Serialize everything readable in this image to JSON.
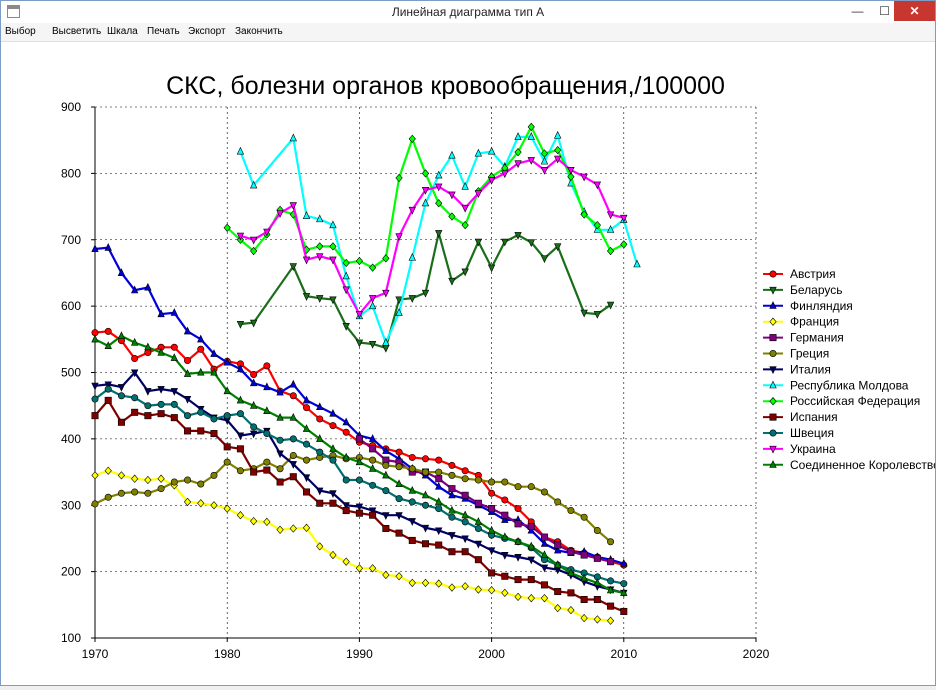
{
  "window": {
    "title": "Линейная диаграмма тип A",
    "close_glyph": "✕",
    "min_glyph": "—",
    "max_glyph": "☐"
  },
  "menu": [
    "Выбор",
    "Высветить",
    "Шкала",
    "Печать",
    "Экспорт",
    "Закончить"
  ],
  "colors": {
    "grid": "#000000",
    "background": "#ffffff"
  },
  "chart_data": {
    "type": "line",
    "title": "СКС, болезни органов кровообращения,/100000",
    "xlabel": "",
    "ylabel": "",
    "xlim": [
      1970,
      2020
    ],
    "ylim": [
      100,
      900
    ],
    "xticks": [
      1970,
      1980,
      1990,
      2000,
      2010,
      2020
    ],
    "yticks": [
      100,
      200,
      300,
      400,
      500,
      600,
      700,
      800,
      900
    ],
    "grid": true,
    "legend_position": "right",
    "series": [
      {
        "name": "Австрия",
        "color": "#ff0000",
        "marker": "circle",
        "x": [
          1970,
          1971,
          1972,
          1973,
          1974,
          1975,
          1976,
          1977,
          1978,
          1979,
          1980,
          1981,
          1982,
          1983,
          1984,
          1985,
          1986,
          1987,
          1988,
          1989,
          1990,
          1991,
          1992,
          1993,
          1994,
          1995,
          1996,
          1997,
          1998,
          1999,
          2000,
          2001,
          2002,
          2003,
          2004,
          2005,
          2006,
          2007,
          2008,
          2009,
          2010
        ],
        "y": [
          560,
          562,
          548,
          521,
          530,
          538,
          538,
          518,
          535,
          505,
          517,
          513,
          497,
          510,
          472,
          465,
          447,
          430,
          420,
          410,
          395,
          390,
          385,
          380,
          372,
          370,
          368,
          360,
          352,
          345,
          318,
          308,
          295,
          275,
          252,
          245,
          232,
          228,
          222,
          215,
          210
        ]
      },
      {
        "name": "Беларусь",
        "color": "#1a6e1a",
        "marker": "triangle-down",
        "x": [
          1981,
          1982,
          1985,
          1986,
          1987,
          1988,
          1989,
          1990,
          1991,
          1992,
          1993,
          1994,
          1995,
          1996,
          1997,
          1998,
          1999,
          2000,
          2001,
          2002,
          2003,
          2004,
          2005,
          2007,
          2008,
          2009
        ],
        "y": [
          573,
          575,
          660,
          615,
          612,
          610,
          570,
          545,
          543,
          537,
          610,
          612,
          620,
          710,
          638,
          652,
          697,
          658,
          697,
          707,
          696,
          672,
          690,
          590,
          588,
          602
        ]
      },
      {
        "name": "Финляндия",
        "color": "#0000dd",
        "marker": "triangle",
        "x": [
          1970,
          1971,
          1972,
          1973,
          1974,
          1975,
          1976,
          1977,
          1978,
          1979,
          1980,
          1981,
          1982,
          1983,
          1984,
          1985,
          1986,
          1987,
          1988,
          1989,
          1990,
          1991,
          1992,
          1993,
          1994,
          1995,
          1996,
          1997,
          1998,
          1999,
          2000,
          2001,
          2002,
          2003,
          2004,
          2005,
          2006,
          2007,
          2008,
          2009,
          2010
        ],
        "y": [
          686,
          688,
          650,
          624,
          628,
          588,
          590,
          562,
          550,
          528,
          515,
          505,
          484,
          478,
          470,
          482,
          458,
          448,
          438,
          425,
          405,
          400,
          382,
          370,
          355,
          345,
          328,
          315,
          310,
          300,
          290,
          278,
          278,
          262,
          242,
          232,
          228,
          230,
          222,
          218,
          212
        ]
      },
      {
        "name": "Франция",
        "color": "#ffff00",
        "marker": "diamond",
        "x": [
          1970,
          1971,
          1972,
          1973,
          1974,
          1975,
          1976,
          1977,
          1978,
          1979,
          1980,
          1981,
          1982,
          1983,
          1984,
          1985,
          1986,
          1987,
          1988,
          1989,
          1990,
          1991,
          1992,
          1993,
          1994,
          1995,
          1996,
          1997,
          1998,
          1999,
          2000,
          2001,
          2002,
          2003,
          2004,
          2005,
          2006,
          2007,
          2008,
          2009
        ],
        "y": [
          345,
          352,
          345,
          340,
          338,
          340,
          330,
          305,
          303,
          300,
          295,
          285,
          276,
          275,
          263,
          265,
          266,
          238,
          225,
          215,
          205,
          205,
          195,
          193,
          183,
          183,
          182,
          176,
          178,
          173,
          172,
          168,
          162,
          160,
          160,
          145,
          142,
          130,
          128,
          126
        ]
      },
      {
        "name": "Германия",
        "color": "#800080",
        "marker": "square",
        "x": [
          1990,
          1991,
          1992,
          1993,
          1994,
          1995,
          1996,
          1997,
          1998,
          1999,
          2000,
          2001,
          2002,
          2003,
          2004,
          2005,
          2006,
          2007,
          2008,
          2009
        ],
        "y": [
          400,
          385,
          368,
          365,
          350,
          350,
          340,
          325,
          315,
          303,
          295,
          285,
          272,
          268,
          252,
          240,
          230,
          225,
          220,
          215
        ]
      },
      {
        "name": "Греция",
        "color": "#808000",
        "marker": "circle",
        "x": [
          1970,
          1971,
          1972,
          1973,
          1974,
          1975,
          1976,
          1977,
          1978,
          1979,
          1980,
          1981,
          1982,
          1983,
          1984,
          1985,
          1986,
          1987,
          1988,
          1989,
          1990,
          1991,
          1992,
          1993,
          1994,
          1995,
          1996,
          1997,
          1998,
          1999,
          2000,
          2001,
          2002,
          2003,
          2004,
          2005,
          2006,
          2007,
          2008,
          2009
        ],
        "y": [
          302,
          312,
          318,
          320,
          318,
          325,
          335,
          338,
          332,
          345,
          365,
          352,
          355,
          365,
          355,
          375,
          368,
          372,
          375,
          370,
          372,
          368,
          360,
          358,
          355,
          350,
          350,
          345,
          340,
          338,
          335,
          335,
          328,
          328,
          320,
          305,
          292,
          282,
          262,
          245
        ]
      },
      {
        "name": "Италия",
        "color": "#000066",
        "marker": "triangle-down",
        "x": [
          1970,
          1971,
          1972,
          1973,
          1974,
          1975,
          1976,
          1977,
          1978,
          1979,
          1980,
          1981,
          1982,
          1983,
          1984,
          1985,
          1986,
          1987,
          1988,
          1989,
          1990,
          1991,
          1992,
          1993,
          1994,
          1995,
          1996,
          1997,
          1998,
          1999,
          2000,
          2001,
          2002,
          2003,
          2004,
          2005,
          2006,
          2007,
          2008,
          2009,
          2010
        ],
        "y": [
          480,
          482,
          478,
          500,
          472,
          475,
          472,
          460,
          445,
          432,
          428,
          405,
          408,
          412,
          378,
          362,
          342,
          322,
          318,
          300,
          298,
          292,
          285,
          285,
          276,
          266,
          262,
          255,
          250,
          242,
          232,
          225,
          222,
          218,
          206,
          203,
          195,
          185,
          178,
          173,
          168
        ]
      },
      {
        "name": "Республика Молдова",
        "color": "#00ffff",
        "marker": "triangle",
        "x": [
          1981,
          1982,
          1985,
          1986,
          1987,
          1988,
          1989,
          1990,
          1991,
          1992,
          1993,
          1994,
          1995,
          1996,
          1997,
          1998,
          1999,
          2000,
          2001,
          2002,
          2003,
          2004,
          2005,
          2006,
          2007,
          2008,
          2009,
          2010,
          2011
        ],
        "y": [
          833,
          782,
          853,
          736,
          731,
          722,
          645,
          585,
          600,
          545,
          590,
          673,
          755,
          797,
          827,
          780,
          830,
          833,
          810,
          855,
          855,
          818,
          857,
          785,
          742,
          715,
          715,
          730,
          663
        ]
      },
      {
        "name": "Российская Федерация",
        "color": "#00ff00",
        "marker": "diamond",
        "x": [
          1980,
          1981,
          1982,
          1983,
          1984,
          1985,
          1986,
          1987,
          1988,
          1989,
          1990,
          1991,
          1992,
          1993,
          1994,
          1995,
          1996,
          1997,
          1998,
          1999,
          2000,
          2001,
          2002,
          2003,
          2004,
          2005,
          2006,
          2007,
          2008,
          2009,
          2010
        ],
        "y": [
          718,
          700,
          683,
          708,
          745,
          738,
          685,
          690,
          690,
          665,
          668,
          658,
          672,
          793,
          852,
          800,
          755,
          735,
          722,
          773,
          795,
          808,
          832,
          870,
          830,
          835,
          795,
          738,
          722,
          683,
          693
        ]
      },
      {
        "name": "Испания",
        "color": "#800000",
        "marker": "square",
        "x": [
          1970,
          1971,
          1972,
          1973,
          1974,
          1975,
          1976,
          1977,
          1978,
          1979,
          1980,
          1981,
          1982,
          1983,
          1984,
          1985,
          1986,
          1987,
          1988,
          1989,
          1990,
          1991,
          1992,
          1993,
          1994,
          1995,
          1996,
          1997,
          1998,
          1999,
          2000,
          2001,
          2002,
          2003,
          2004,
          2005,
          2006,
          2007,
          2008,
          2009,
          2010
        ],
        "y": [
          435,
          458,
          425,
          440,
          435,
          438,
          432,
          412,
          412,
          408,
          388,
          385,
          350,
          353,
          335,
          343,
          320,
          303,
          303,
          292,
          288,
          285,
          265,
          258,
          247,
          242,
          240,
          230,
          230,
          218,
          198,
          193,
          188,
          188,
          180,
          170,
          168,
          158,
          158,
          148,
          140
        ]
      },
      {
        "name": "Швеция",
        "color": "#007070",
        "marker": "circle",
        "x": [
          1970,
          1971,
          1972,
          1973,
          1974,
          1975,
          1976,
          1977,
          1978,
          1979,
          1980,
          1981,
          1982,
          1983,
          1984,
          1985,
          1986,
          1987,
          1988,
          1989,
          1990,
          1991,
          1992,
          1993,
          1994,
          1995,
          1996,
          1997,
          1998,
          1999,
          2000,
          2001,
          2002,
          2003,
          2004,
          2005,
          2006,
          2007,
          2008,
          2009,
          2010
        ],
        "y": [
          460,
          475,
          465,
          462,
          450,
          452,
          452,
          435,
          440,
          430,
          435,
          438,
          418,
          408,
          398,
          400,
          392,
          380,
          368,
          338,
          338,
          330,
          322,
          310,
          305,
          300,
          295,
          282,
          275,
          265,
          255,
          250,
          245,
          236,
          218,
          210,
          203,
          198,
          192,
          186,
          182
        ]
      },
      {
        "name": "Украина",
        "color": "#ff00ff",
        "marker": "triangle-down",
        "x": [
          1981,
          1982,
          1983,
          1984,
          1985,
          1986,
          1987,
          1988,
          1989,
          1990,
          1991,
          1992,
          1993,
          1994,
          1995,
          1996,
          1997,
          1998,
          1999,
          2000,
          2001,
          2002,
          2003,
          2004,
          2005,
          2006,
          2007,
          2008,
          2009,
          2010
        ],
        "y": [
          706,
          700,
          712,
          740,
          752,
          670,
          675,
          670,
          625,
          588,
          612,
          620,
          705,
          745,
          775,
          780,
          768,
          748,
          770,
          790,
          800,
          815,
          820,
          805,
          822,
          805,
          795,
          783,
          738,
          733
        ]
      },
      {
        "name": "Соединенное Королевство",
        "color": "#008000",
        "marker": "triangle",
        "x": [
          1970,
          1971,
          1972,
          1973,
          1974,
          1975,
          1976,
          1977,
          1978,
          1979,
          1980,
          1981,
          1982,
          1983,
          1984,
          1985,
          1986,
          1987,
          1988,
          1989,
          1990,
          1991,
          1992,
          1993,
          1994,
          1995,
          1996,
          1997,
          1998,
          1999,
          2000,
          2001,
          2002,
          2003,
          2004,
          2005,
          2006,
          2007,
          2008,
          2009,
          2010
        ],
        "y": [
          550,
          540,
          555,
          545,
          538,
          530,
          522,
          498,
          500,
          500,
          472,
          458,
          450,
          442,
          432,
          432,
          415,
          400,
          385,
          372,
          365,
          355,
          345,
          332,
          322,
          315,
          305,
          292,
          285,
          275,
          262,
          252,
          245,
          238,
          225,
          210,
          198,
          190,
          183,
          172,
          168
        ]
      }
    ]
  }
}
